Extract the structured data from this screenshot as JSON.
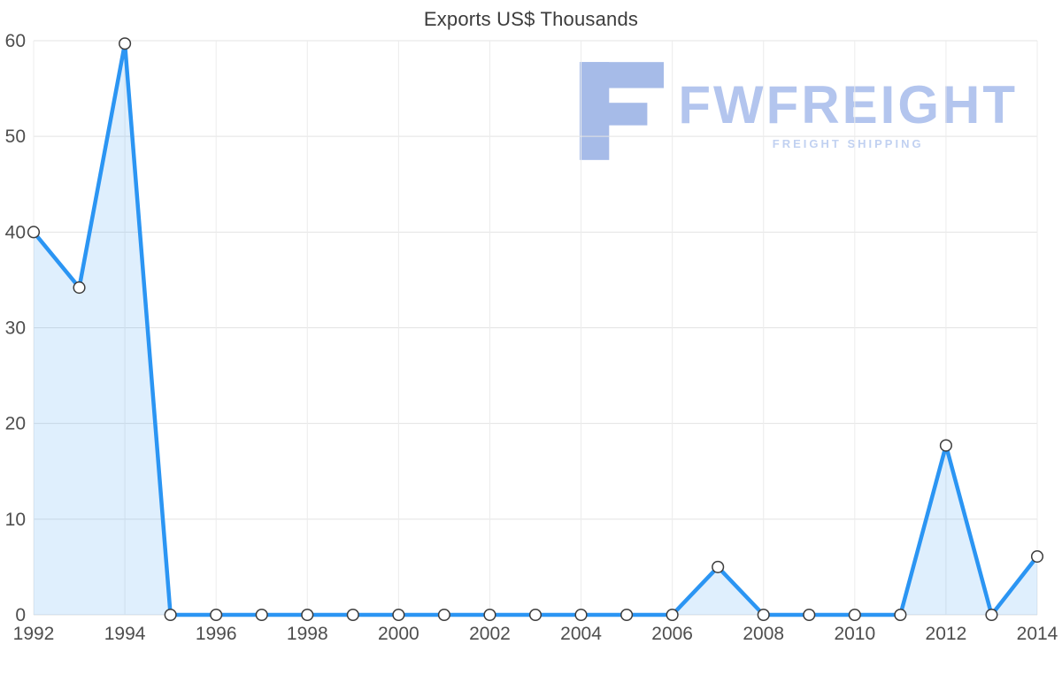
{
  "chart_data": {
    "type": "area",
    "title": "Exports US$ Thousands",
    "x": [
      1992,
      1993,
      1994,
      1995,
      1996,
      1997,
      1998,
      1999,
      2000,
      2001,
      2002,
      2003,
      2004,
      2005,
      2006,
      2007,
      2008,
      2009,
      2010,
      2011,
      2012,
      2013,
      2014
    ],
    "values": [
      40,
      34.2,
      59.7,
      0,
      0,
      0,
      0,
      0,
      0,
      0,
      0,
      0,
      0,
      0,
      0,
      5,
      0,
      0,
      0,
      0,
      17.7,
      0,
      6.1
    ],
    "ylim": [
      0,
      60
    ],
    "yticks": [
      0,
      10,
      20,
      30,
      40,
      50,
      60
    ],
    "xticks": [
      1992,
      1994,
      1996,
      1998,
      2000,
      2002,
      2004,
      2006,
      2008,
      2010,
      2012,
      2014
    ],
    "grid": true,
    "legend": "none",
    "marker": "circle",
    "colors": {
      "line": "#2b95f3",
      "fill": "rgba(43,149,243,0.15)",
      "marker_fill": "#ffffff",
      "marker_stroke": "#3c3c3c",
      "grid": "#e3e3e3",
      "grid_vertical": "#ececec",
      "tick_label": "#4e4e4e",
      "title": "#3c3c3c"
    }
  },
  "watermark": {
    "brand": "FWFREIGHT",
    "tagline": "FREIGHT SHIPPING",
    "logo_icon": "f-block-icon",
    "brand_color": "#b3c5ee",
    "tagline_color": "#c1d1f1",
    "icon_color": "#a6bbe8"
  }
}
